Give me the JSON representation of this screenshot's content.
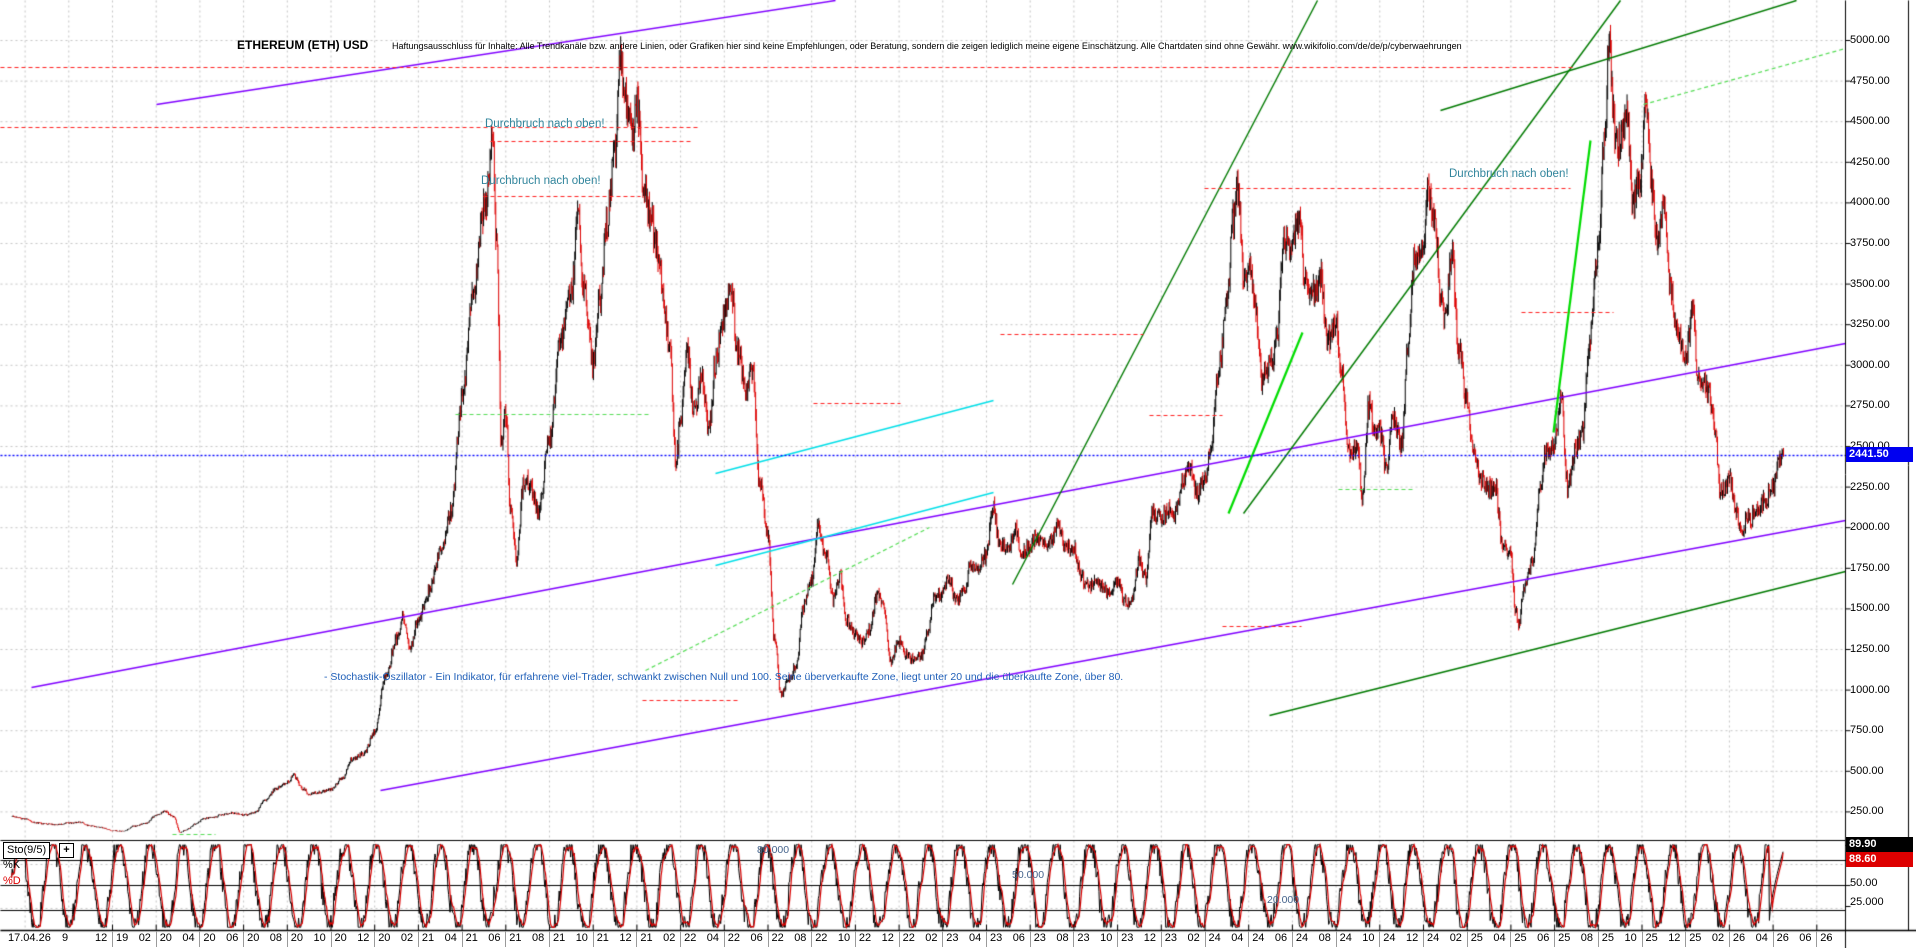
{
  "header": {
    "title": "ETHEREUM (ETH) USD",
    "disclaimer": "Haftungsausschluss für Inhalte: Alle Trendkanäle bzw. andere Linien, oder Grafiken hier sind keine Empfehlungen, oder Beratung, sondern die zeigen lediglich meine eigene Einschätzung. Alle Chartdaten sind ohne Gewähr. www.wikifolio.com/de/de/p/cyberwaehrungen"
  },
  "annotations": {
    "breakout": "Durchbruch nach oben!",
    "stochastic_note": "- Stochastik-Oszillator - Ein Indikator, für erfahrene viel-Trader, schwankt zwischen Null und 100. Seine überverkaufte Zone, liegt unter 20 und die überkaufte Zone, über 80."
  },
  "price_axis": {
    "labels": [
      "5000.00",
      "4750.00",
      "4500.00",
      "4250.00",
      "4000.00",
      "3750.00",
      "3500.00",
      "3250.00",
      "3000.00",
      "2750.00",
      "2500.00",
      "2250.00",
      "2000.00",
      "1750.00",
      "1500.00",
      "1250.00",
      "1000.00",
      "750.00",
      "500.00",
      "250.00"
    ],
    "current_price": "2441.50",
    "current_price_color": "#0000f0"
  },
  "time_axis": {
    "start_label": "17.04.26",
    "prefix_label": "9",
    "cells": [
      "12|19",
      "02|20",
      "04|20",
      "06|20",
      "08|20",
      "10|20",
      "12|20",
      "02|21",
      "04|21",
      "06|21",
      "08|21",
      "10|21",
      "12|21",
      "02|22",
      "04|22",
      "06|22",
      "08|22",
      "10|22",
      "12|22",
      "02|23",
      "04|23",
      "06|23",
      "08|23",
      "10|23",
      "12|23",
      "02|24",
      "04|24",
      "06|24",
      "08|24",
      "10|24",
      "12|24",
      "02|25",
      "04|25",
      "06|25",
      "08|25",
      "10|25",
      "12|25",
      "02|26",
      "04|26",
      "06|26"
    ],
    "suffix_label": "-"
  },
  "stochastic": {
    "name": "Sto(9/5)",
    "add_button": "+",
    "k_label": "%K",
    "d_label": "%D",
    "k_value": "89.90",
    "d_value": "88.60",
    "mid_value": "50.00",
    "low_value": "25.000",
    "level_labels": [
      "80.000",
      "50.000",
      "20.000"
    ],
    "k_color": "#000000",
    "d_color": "#dd0000"
  },
  "chart_data": {
    "type": "candlestick",
    "title": "ETHEREUM (ETH) USD",
    "sub_panel": "Stochastic oscillator Sto(9/5), range 0-100, lines at 80/50/20",
    "ylim": [
      0,
      5000
    ],
    "y_gridstep": 250,
    "x_range_months": "2019-07 to 2026-06, ticks every 2 months",
    "current_price": 2441.5,
    "current_stochastic": {
      "k": 89.9,
      "d": 88.6
    },
    "colors": {
      "up": "#000000",
      "down": "#dd0000",
      "grid": "#c6c6c6",
      "purple": "#8000ff",
      "darkgreen": "#007a00",
      "lime": "#00dd00",
      "cyan": "#00dfe8",
      "reddash": "#ff2020",
      "limedash": "#55dd55",
      "bluedot": "#0000ff"
    },
    "price_anchors_note": "[months since 2019-12, approx ETH/USD price] read from chart",
    "price_anchors": [
      [
        -4.6,
        218
      ],
      [
        -4,
        205
      ],
      [
        -3.5,
        180
      ],
      [
        -3,
        172
      ],
      [
        -2.5,
        168
      ],
      [
        -2,
        178
      ],
      [
        -1.5,
        183
      ],
      [
        -1,
        160
      ],
      [
        -0.5,
        150
      ],
      [
        0,
        132
      ],
      [
        0.5,
        128
      ],
      [
        1,
        160
      ],
      [
        1.5,
        175
      ],
      [
        2,
        225
      ],
      [
        2.4,
        250
      ],
      [
        2.8,
        215
      ],
      [
        3.1,
        120
      ],
      [
        3.4,
        138
      ],
      [
        3.8,
        172
      ],
      [
        4.2,
        205
      ],
      [
        4.6,
        212
      ],
      [
        5,
        230
      ],
      [
        5.5,
        240
      ],
      [
        6,
        228
      ],
      [
        6.5,
        242
      ],
      [
        7,
        318
      ],
      [
        7.5,
        392
      ],
      [
        8,
        428
      ],
      [
        8.3,
        472
      ],
      [
        8.7,
        390
      ],
      [
        9,
        358
      ],
      [
        9.5,
        368
      ],
      [
        10,
        385
      ],
      [
        10.5,
        452
      ],
      [
        11,
        575
      ],
      [
        11.5,
        610
      ],
      [
        12,
        735
      ],
      [
        12.5,
        1085
      ],
      [
        13,
        1310
      ],
      [
        13.3,
        1445
      ],
      [
        13.6,
        1245
      ],
      [
        14,
        1420
      ],
      [
        14.5,
        1605
      ],
      [
        15,
        1845
      ],
      [
        15.5,
        2105
      ],
      [
        16,
        2775
      ],
      [
        16.5,
        3455
      ],
      [
        17,
        3955
      ],
      [
        17.4,
        4360
      ],
      [
        17.6,
        3705
      ],
      [
        17.8,
        2505
      ],
      [
        18,
        2705
      ],
      [
        18.2,
        2105
      ],
      [
        18.5,
        1805
      ],
      [
        18.8,
        2255
      ],
      [
        19,
        2275
      ],
      [
        19.5,
        2105
      ],
      [
        20,
        2535
      ],
      [
        20.5,
        3155
      ],
      [
        21,
        3435
      ],
      [
        21.3,
        3905
      ],
      [
        21.6,
        3455
      ],
      [
        22,
        3005
      ],
      [
        22.3,
        3405
      ],
      [
        22.6,
        3855
      ],
      [
        23,
        4290
      ],
      [
        23.25,
        4860
      ],
      [
        23.6,
        4555
      ],
      [
        23.8,
        4400
      ],
      [
        24,
        4635
      ],
      [
        24.3,
        4105
      ],
      [
        24.6,
        3905
      ],
      [
        25,
        3685
      ],
      [
        25.3,
        3305
      ],
      [
        25.5,
        3085
      ],
      [
        25.8,
        2405
      ],
      [
        26,
        2685
      ],
      [
        26.3,
        3105
      ],
      [
        26.6,
        2705
      ],
      [
        27,
        2925
      ],
      [
        27.3,
        2605
      ],
      [
        27.6,
        3005
      ],
      [
        28,
        3285
      ],
      [
        28.3,
        3505
      ],
      [
        28.6,
        3105
      ],
      [
        29,
        2825
      ],
      [
        29.3,
        2955
      ],
      [
        29.6,
        2305
      ],
      [
        30,
        1945
      ],
      [
        30.3,
        1305
      ],
      [
        30.6,
        965
      ],
      [
        31,
        1075
      ],
      [
        31.3,
        1155
      ],
      [
        31.6,
        1505
      ],
      [
        32,
        1685
      ],
      [
        32.3,
        2025
      ],
      [
        32.6,
        1855
      ],
      [
        33,
        1555
      ],
      [
        33.3,
        1705
      ],
      [
        33.6,
        1425
      ],
      [
        34,
        1335
      ],
      [
        34.3,
        1295
      ],
      [
        34.6,
        1365
      ],
      [
        35,
        1575
      ],
      [
        35.3,
        1525
      ],
      [
        35.6,
        1175
      ],
      [
        36,
        1295
      ],
      [
        36.3,
        1215
      ],
      [
        36.6,
        1185
      ],
      [
        37,
        1205
      ],
      [
        37.3,
        1355
      ],
      [
        37.6,
        1555
      ],
      [
        38,
        1595
      ],
      [
        38.3,
        1685
      ],
      [
        38.6,
        1545
      ],
      [
        39,
        1605
      ],
      [
        39.3,
        1785
      ],
      [
        39.6,
        1745
      ],
      [
        40,
        1825
      ],
      [
        40.3,
        2125
      ],
      [
        40.6,
        1905
      ],
      [
        41,
        1875
      ],
      [
        41.3,
        1995
      ],
      [
        41.6,
        1835
      ],
      [
        42,
        1875
      ],
      [
        42.3,
        1945
      ],
      [
        42.6,
        1895
      ],
      [
        43,
        1935
      ],
      [
        43.3,
        2015
      ],
      [
        43.6,
        1885
      ],
      [
        44,
        1865
      ],
      [
        44.3,
        1705
      ],
      [
        44.6,
        1635
      ],
      [
        45,
        1655
      ],
      [
        45.3,
        1645
      ],
      [
        45.6,
        1585
      ],
      [
        46,
        1675
      ],
      [
        46.3,
        1565
      ],
      [
        46.6,
        1525
      ],
      [
        47,
        1805
      ],
      [
        47.3,
        1685
      ],
      [
        47.6,
        2085
      ],
      [
        48,
        2055
      ],
      [
        48.3,
        2105
      ],
      [
        48.6,
        2065
      ],
      [
        49,
        2285
      ],
      [
        49.3,
        2385
      ],
      [
        49.6,
        2205
      ],
      [
        50,
        2285
      ],
      [
        50.3,
        2505
      ],
      [
        50.6,
        2955
      ],
      [
        51,
        3385
      ],
      [
        51.3,
        3905
      ],
      [
        51.5,
        4090
      ],
      [
        51.8,
        3505
      ],
      [
        52,
        3655
      ],
      [
        52.3,
        3355
      ],
      [
        52.6,
        2905
      ],
      [
        53,
        3015
      ],
      [
        53.3,
        3155
      ],
      [
        53.6,
        3755
      ],
      [
        54,
        3765
      ],
      [
        54.3,
        3905
      ],
      [
        54.6,
        3505
      ],
      [
        55,
        3445
      ],
      [
        55.3,
        3555
      ],
      [
        55.6,
        3155
      ],
      [
        56,
        3235
      ],
      [
        56.3,
        2905
      ],
      [
        56.6,
        2455
      ],
      [
        57,
        2515
      ],
      [
        57.2,
        2155
      ],
      [
        57.5,
        2755
      ],
      [
        57.8,
        2555
      ],
      [
        58,
        2605
      ],
      [
        58.3,
        2355
      ],
      [
        58.6,
        2655
      ],
      [
        59,
        2515
      ],
      [
        59.3,
        3105
      ],
      [
        59.6,
        3655
      ],
      [
        60,
        3705
      ],
      [
        60.2,
        4105
      ],
      [
        60.5,
        3905
      ],
      [
        60.8,
        3405
      ],
      [
        61,
        3305
      ],
      [
        61.3,
        3705
      ],
      [
        61.6,
        3105
      ],
      [
        62,
        2755
      ],
      [
        62.3,
        2455
      ],
      [
        62.6,
        2305
      ],
      [
        63,
        2235
      ],
      [
        63.3,
        2255
      ],
      [
        63.6,
        1905
      ],
      [
        64,
        1825
      ],
      [
        64.2,
        1505
      ],
      [
        64.35,
        1385
      ],
      [
        64.6,
        1625
      ],
      [
        65,
        1795
      ],
      [
        65.3,
        2205
      ],
      [
        65.6,
        2455
      ],
      [
        66,
        2535
      ],
      [
        66.3,
        2805
      ],
      [
        66.6,
        2255
      ],
      [
        67,
        2495
      ],
      [
        67.3,
        2605
      ],
      [
        67.6,
        3155
      ],
      [
        68,
        3705
      ],
      [
        68.3,
        4455
      ],
      [
        68.5,
        4955
      ],
      [
        68.8,
        4355
      ],
      [
        69,
        4395
      ],
      [
        69.3,
        4505
      ],
      [
        69.6,
        4005
      ],
      [
        70,
        4155
      ],
      [
        70.15,
        4705
      ],
      [
        70.45,
        4105
      ],
      [
        70.7,
        3755
      ],
      [
        71,
        3955
      ],
      [
        71.3,
        3505
      ],
      [
        71.6,
        3205
      ],
      [
        72,
        3055
      ],
      [
        72.3,
        3305
      ],
      [
        72.6,
        2905
      ],
      [
        73,
        2855
      ],
      [
        73.3,
        2655
      ],
      [
        73.6,
        2205
      ],
      [
        74,
        2305
      ],
      [
        74.3,
        2105
      ],
      [
        74.55,
        1955
      ],
      [
        74.8,
        2055
      ],
      [
        75,
        2055
      ],
      [
        75.3,
        2105
      ],
      [
        75.6,
        2155
      ],
      [
        76,
        2255
      ],
      [
        76.2,
        2385
      ],
      [
        76.5,
        2441.5
      ]
    ],
    "trendlines": [
      {
        "color": "#8000ff",
        "w": 1.4,
        "pts": [
          156,
          104,
          835,
          0
        ]
      },
      {
        "color": "#8000ff",
        "w": 1.4,
        "pts": [
          31,
          687,
          1845,
          343
        ]
      },
      {
        "color": "#8000ff",
        "w": 1.4,
        "pts": [
          380,
          790,
          1845,
          520
        ]
      },
      {
        "color": "#007a00",
        "w": 1.4,
        "pts": [
          1012,
          584,
          1317,
          0
        ]
      },
      {
        "color": "#007a00",
        "w": 1.4,
        "pts": [
          1243,
          513,
          1620,
          0
        ]
      },
      {
        "color": "#007a00",
        "w": 1.4,
        "pts": [
          1269,
          715,
          1845,
          571
        ]
      },
      {
        "color": "#007a00",
        "w": 1.4,
        "pts": [
          1440,
          110,
          1796,
          0
        ]
      },
      {
        "color": "#00dd00",
        "w": 2.2,
        "pts": [
          1228,
          513,
          1302,
          332
        ]
      },
      {
        "color": "#00dd00",
        "w": 2.2,
        "pts": [
          1553,
          432,
          1590,
          140
        ]
      },
      {
        "color": "#00dfe8",
        "w": 1.4,
        "pts": [
          715,
          473,
          993,
          400
        ]
      },
      {
        "color": "#00dfe8",
        "w": 1.4,
        "pts": [
          715,
          565,
          993,
          492
        ]
      },
      {
        "color": "#55dd55",
        "w": 1.2,
        "dash": [
          4,
          3
        ],
        "pts": [
          645,
          670,
          929,
          527
        ]
      },
      {
        "color": "#55dd55",
        "w": 1.2,
        "dash": [
          4,
          3
        ],
        "pts": [
          1643,
          104,
          1845,
          48
        ]
      },
      {
        "color": "#55dd55",
        "w": 1.2,
        "dash": [
          4,
          3
        ],
        "pts": [
          455,
          414,
          651,
          414
        ]
      },
      {
        "color": "#55dd55",
        "w": 1.2,
        "dash": [
          4,
          3
        ],
        "pts": [
          1338,
          489,
          1412,
          489
        ]
      },
      {
        "color": "#55dd55",
        "w": 1.2,
        "dash": [
          4,
          3
        ],
        "pts": [
          172,
          834,
          215,
          834
        ]
      },
      {
        "color": "#ff2020",
        "w": 1.1,
        "dash": [
          4,
          3
        ],
        "pts": [
          0,
          67,
          1575,
          67
        ]
      },
      {
        "color": "#ff2020",
        "w": 1.1,
        "dash": [
          4,
          3
        ],
        "pts": [
          0,
          127,
          697,
          127
        ]
      },
      {
        "color": "#ff2020",
        "w": 1.1,
        "dash": [
          4,
          3
        ],
        "pts": [
          490,
          141,
          690,
          141
        ]
      },
      {
        "color": "#ff2020",
        "w": 1.1,
        "dash": [
          4,
          3
        ],
        "pts": [
          483,
          196,
          640,
          196
        ]
      },
      {
        "color": "#ff2020",
        "w": 1.1,
        "dash": [
          4,
          3
        ],
        "pts": [
          1204,
          188,
          1570,
          188
        ]
      },
      {
        "color": "#ff2020",
        "w": 1.1,
        "dash": [
          4,
          3
        ],
        "pts": [
          1000,
          334,
          1143,
          334
        ]
      },
      {
        "color": "#ff2020",
        "w": 1.1,
        "dash": [
          4,
          3
        ],
        "pts": [
          1521,
          312,
          1613,
          312
        ]
      },
      {
        "color": "#ff2020",
        "w": 1.1,
        "dash": [
          4,
          3
        ],
        "pts": [
          813,
          403,
          900,
          403
        ]
      },
      {
        "color": "#ff2020",
        "w": 1.1,
        "dash": [
          4,
          3
        ],
        "pts": [
          1149,
          415,
          1222,
          415
        ]
      },
      {
        "color": "#ff2020",
        "w": 1.1,
        "dash": [
          4,
          3
        ],
        "pts": [
          642,
          700,
          737,
          700
        ]
      },
      {
        "color": "#ff2020",
        "w": 1.1,
        "dash": [
          4,
          3
        ],
        "pts": [
          1222,
          626,
          1301,
          626
        ]
      },
      {
        "color": "#0000ff",
        "w": 1.4,
        "dash": [
          2,
          2
        ],
        "pts": [
          0,
          455,
          1845,
          455
        ]
      }
    ],
    "stoch_levels": [
      80,
      50,
      20
    ]
  }
}
